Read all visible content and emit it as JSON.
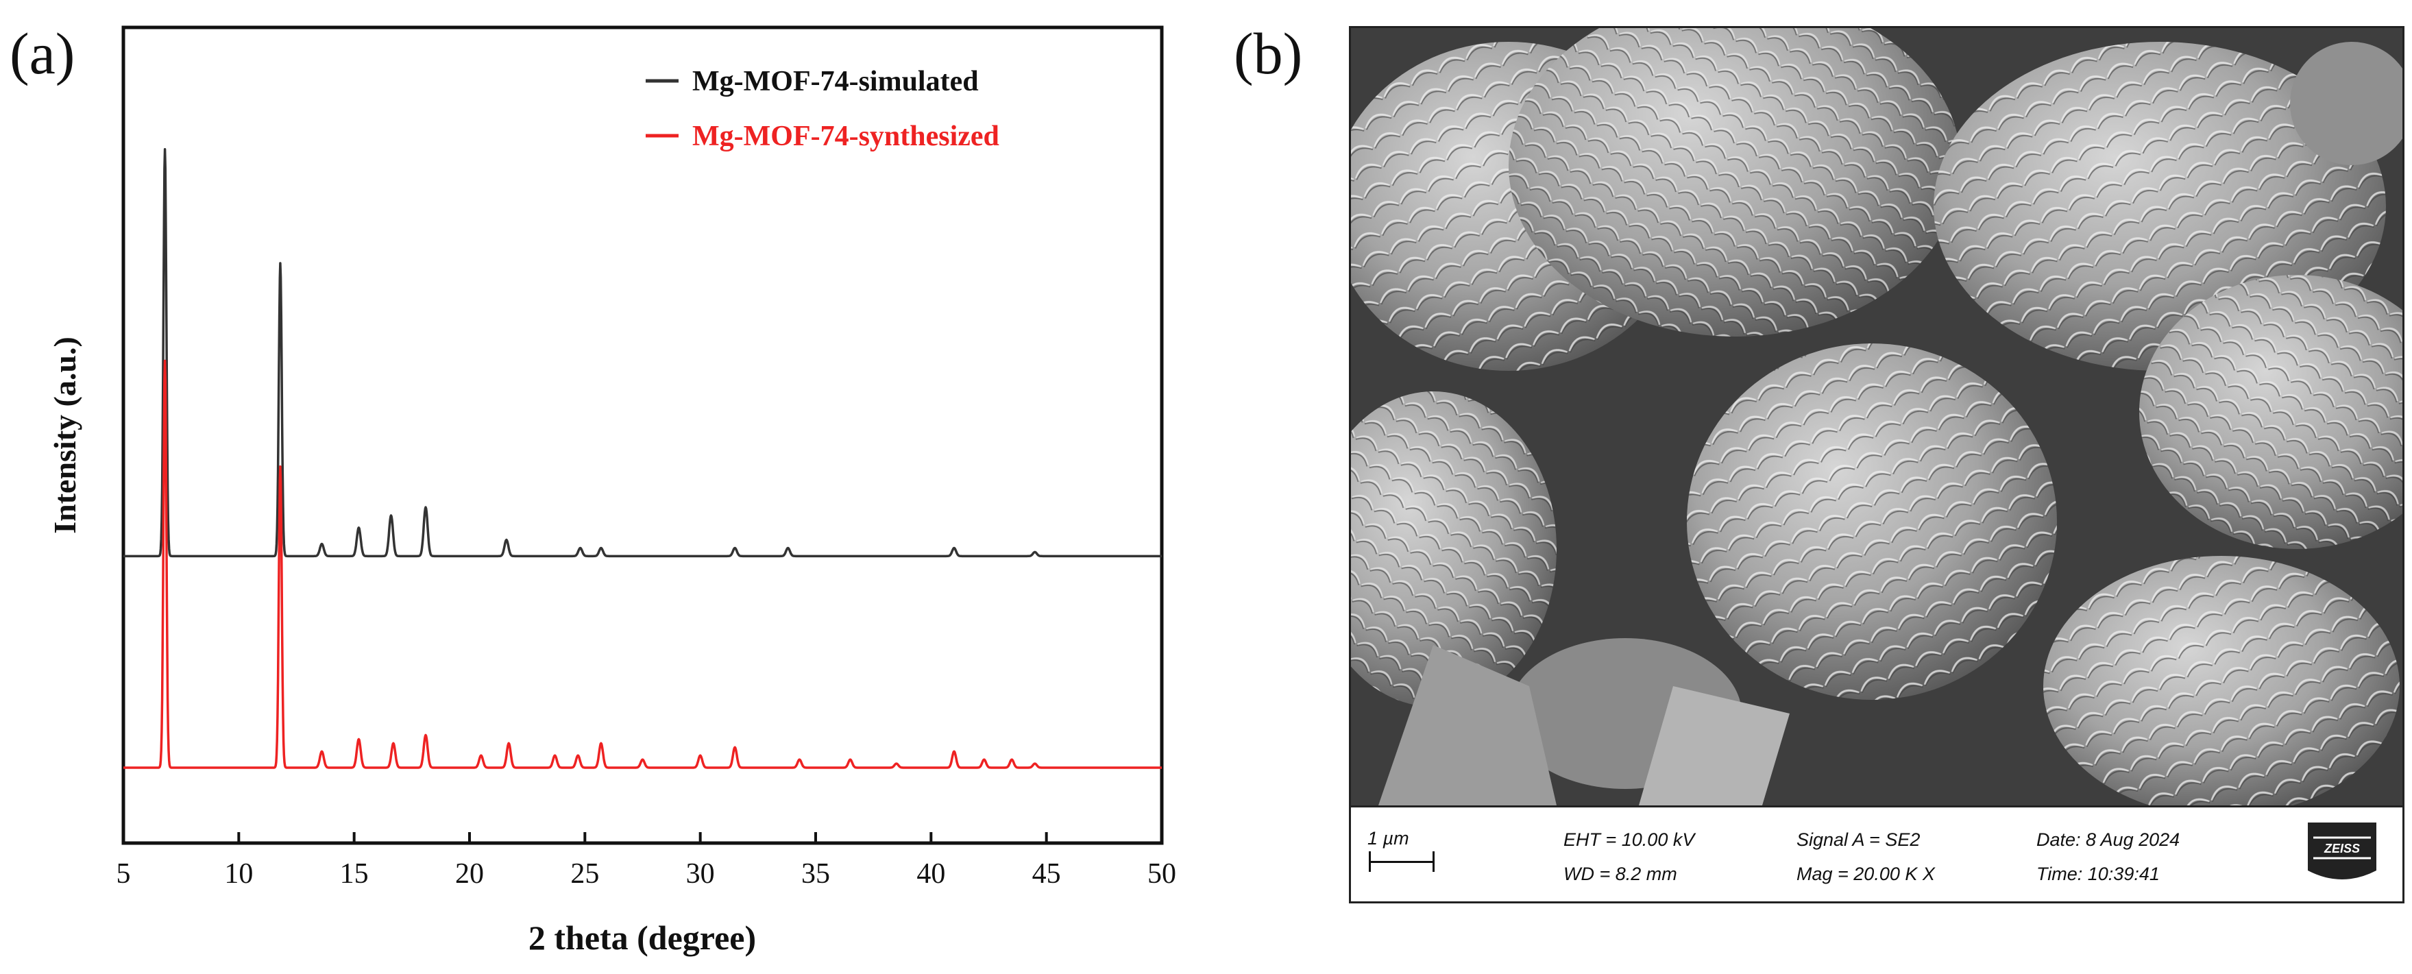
{
  "panels": {
    "a_label": "(a)",
    "b_label": "(b)"
  },
  "chart_data": {
    "type": "line",
    "title": "",
    "xlabel": "2 theta (degree)",
    "ylabel": "Intensity (a.u.)",
    "xlim": [
      5,
      50
    ],
    "xticks": [
      5,
      10,
      15,
      20,
      25,
      30,
      35,
      40,
      45,
      50
    ],
    "yticks_shown": false,
    "grid": false,
    "legend": {
      "placement": "top-right"
    },
    "series": [
      {
        "name": "Mg-MOF-74-simulated",
        "color": "#333333",
        "baseline": 0.52,
        "peaks": [
          {
            "x": 6.8,
            "y": 1.0
          },
          {
            "x": 11.8,
            "y": 0.72
          },
          {
            "x": 13.6,
            "y": 0.03
          },
          {
            "x": 15.2,
            "y": 0.07
          },
          {
            "x": 16.6,
            "y": 0.1
          },
          {
            "x": 18.1,
            "y": 0.12
          },
          {
            "x": 21.6,
            "y": 0.04
          },
          {
            "x": 24.8,
            "y": 0.02
          },
          {
            "x": 25.7,
            "y": 0.02
          },
          {
            "x": 31.5,
            "y": 0.02
          },
          {
            "x": 33.8,
            "y": 0.02
          },
          {
            "x": 41.0,
            "y": 0.02
          },
          {
            "x": 44.5,
            "y": 0.01
          }
        ]
      },
      {
        "name": "Mg-MOF-74-synthesized",
        "color": "#ee2222",
        "baseline": 0.0,
        "peaks": [
          {
            "x": 6.8,
            "y": 1.0
          },
          {
            "x": 11.8,
            "y": 0.74
          },
          {
            "x": 13.6,
            "y": 0.04
          },
          {
            "x": 15.2,
            "y": 0.07
          },
          {
            "x": 16.7,
            "y": 0.06
          },
          {
            "x": 18.1,
            "y": 0.08
          },
          {
            "x": 20.5,
            "y": 0.03
          },
          {
            "x": 21.7,
            "y": 0.06
          },
          {
            "x": 23.7,
            "y": 0.03
          },
          {
            "x": 24.7,
            "y": 0.03
          },
          {
            "x": 25.7,
            "y": 0.06
          },
          {
            "x": 27.5,
            "y": 0.02
          },
          {
            "x": 30.0,
            "y": 0.03
          },
          {
            "x": 31.5,
            "y": 0.05
          },
          {
            "x": 34.3,
            "y": 0.02
          },
          {
            "x": 36.5,
            "y": 0.02
          },
          {
            "x": 38.5,
            "y": 0.01
          },
          {
            "x": 41.0,
            "y": 0.04
          },
          {
            "x": 42.3,
            "y": 0.02
          },
          {
            "x": 43.5,
            "y": 0.02
          },
          {
            "x": 44.5,
            "y": 0.01
          }
        ]
      }
    ]
  },
  "sem": {
    "scale_label": "1 µm",
    "eht": "EHT = 10.00 kV",
    "wd": "WD =  8.2 mm",
    "signal": "Signal A = SE2",
    "mag": "Mag =   20.00 K X",
    "date": "Date: 8 Aug 2024",
    "time": "Time: 10:39:41",
    "logo_text": "ZEISS"
  }
}
